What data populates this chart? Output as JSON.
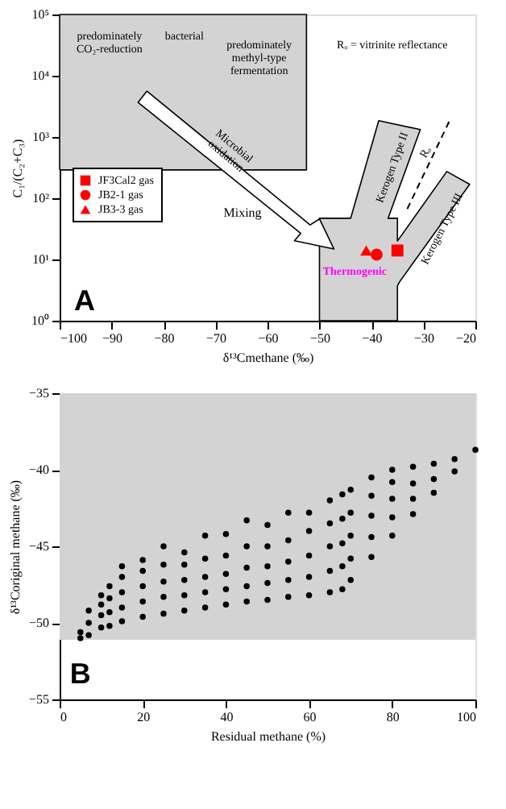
{
  "chart_data": [
    {
      "type": "scatter",
      "xlabel": "δ¹³Cmethane (‰)",
      "ylabel": "C₁/(C₂+C₃)",
      "log": "y",
      "grid": false,
      "legend": "left",
      "xlim": [
        -100,
        -20
      ],
      "xticks": [
        -100,
        -90,
        -80,
        -70,
        -60,
        -50,
        -40,
        -30,
        -20
      ],
      "ylim": [
        1,
        100000
      ],
      "yticks": [
        {
          "value": 1,
          "label": "10⁰"
        },
        {
          "value": 10,
          "label": "10¹"
        },
        {
          "value": 100,
          "label": "10²"
        },
        {
          "value": 1000,
          "label": "10³"
        },
        {
          "value": 10000,
          "label": "10⁴"
        },
        {
          "value": 100000,
          "label": "10⁵"
        }
      ],
      "series": [
        {
          "type": "area",
          "color": "#d3d3d3",
          "x": [
            -100,
            -52.5,
            -52.5,
            -100,
            -100
          ],
          "values": [
            290,
            290,
            100000,
            100000,
            290
          ]
        },
        {
          "type": "area",
          "color": "#d3d3d3",
          "x": [
            -50,
            -50,
            -44,
            -38.6,
            -30.6,
            -36.8,
            -35,
            -35,
            -25.5,
            -21.1,
            -34.6,
            -35,
            -35,
            -50
          ],
          "values": [
            1,
            47,
            47,
            1850,
            1320,
            47,
            47,
            20,
            273,
            169,
            4.3,
            3.7,
            1,
            1
          ]
        },
        {
          "type": "area",
          "color": "#ffffff",
          "x": [
            -83.2,
            -51.8,
            -50,
            -47.2,
            -54.8,
            -53.6,
            -84.9,
            -83.2
          ],
          "values": [
            5620,
            36.7,
            45.9,
            14.8,
            20.2,
            26.7,
            3670,
            5620
          ]
        },
        {
          "type": "line",
          "color": "#000000",
          "line_style": "dashed",
          "x": [
            -33.1,
            -25
          ],
          "values": [
            67,
            1820
          ]
        },
        {
          "type": "scatter",
          "name": "JF3Cal2 gas",
          "color": "#ff0000",
          "marker": "square",
          "x": [
            -35
          ],
          "values": [
            14
          ]
        },
        {
          "type": "scatter",
          "name": "JB2-1 gas",
          "color": "#ff0000",
          "marker": "circle",
          "x": [
            -39
          ],
          "values": [
            12
          ]
        },
        {
          "type": "scatter",
          "name": "JB3-3 gas",
          "color": "#ff0000",
          "marker": "triangle",
          "x": [
            -41
          ],
          "values": [
            14
          ]
        }
      ],
      "annotations": [
        "predominately\nCO₂-reduction",
        "bacterial",
        "predominately\nmethyl-type\nfermentation",
        "Rₒ = vitrinite reflectance",
        "Microbial\noxidation",
        "Kerogen Type II",
        "Kerogen Type III",
        "Rₒ",
        "Mixing",
        "Thermogenic",
        "A"
      ]
    },
    {
      "type": "scatter",
      "xlabel": "Residual methane (%)",
      "ylabel": "δ¹³Coriginal methane (‰)",
      "grid": false,
      "marker": "circle",
      "xlim": [
        0,
        100
      ],
      "xticks": [
        0,
        20,
        40,
        60,
        80,
        100
      ],
      "ylim": [
        -55,
        -35
      ],
      "yticks": [
        -55,
        -50,
        -45,
        -40,
        -35
      ],
      "bands": [
        {
          "axis": "y",
          "from": -51.1,
          "to": -35,
          "color": "#d3d3d3"
        }
      ],
      "series": [
        {
          "color": "#000000",
          "x": [
            5,
            5,
            7,
            7,
            7,
            10,
            10,
            10,
            10,
            12,
            12,
            12,
            12,
            15,
            15,
            15,
            15,
            15,
            20,
            20,
            20,
            20,
            20,
            25,
            25,
            25,
            25,
            25,
            30,
            30,
            30,
            30,
            30,
            35,
            35,
            35,
            35,
            35,
            40,
            40,
            40,
            40,
            40,
            45,
            45,
            45,
            45,
            45,
            50,
            50,
            50,
            50,
            50,
            55,
            55,
            55,
            55,
            55,
            60,
            60,
            60,
            60,
            60,
            65,
            65,
            65,
            65,
            65,
            68,
            68,
            68,
            68,
            68,
            70,
            70,
            70,
            70,
            70,
            75,
            75,
            75,
            75,
            75,
            80,
            80,
            80,
            80,
            80,
            85,
            85,
            85,
            85,
            90,
            90,
            90,
            95,
            95,
            100
          ],
          "values": [
            -51,
            -50.6,
            -50.8,
            -50,
            -49.2,
            -50.3,
            -49.5,
            -48.8,
            -48.2,
            -50.2,
            -49.3,
            -48.4,
            -47.6,
            -49.9,
            -49,
            -48,
            -47,
            -46.3,
            -49.6,
            -48.6,
            -47.6,
            -46.6,
            -45.9,
            -49.4,
            -48.3,
            -47.3,
            -46.2,
            -45,
            -49.2,
            -48.2,
            -47.2,
            -46.2,
            -45.4,
            -49,
            -48,
            -47,
            -45.8,
            -44.3,
            -48.8,
            -47.8,
            -46.8,
            -45.6,
            -44.2,
            -48.6,
            -47.6,
            -46.4,
            -45,
            -43.3,
            -48.5,
            -47.4,
            -46.3,
            -45,
            -43.6,
            -48.3,
            -47.2,
            -46,
            -44.6,
            -42.8,
            -48.2,
            -47,
            -45.6,
            -44,
            -42.8,
            -48,
            -46.6,
            -45,
            -43.5,
            -42,
            -47.8,
            -46.3,
            -44.8,
            -43.2,
            -41.6,
            -47.2,
            -45.8,
            -44.3,
            -42.8,
            -41.3,
            -45.7,
            -44.4,
            -43,
            -41.7,
            -40.5,
            -44.3,
            -43.1,
            -41.9,
            -40.8,
            -40,
            -42.9,
            -41.9,
            -40.9,
            -39.8,
            -41.5,
            -40.6,
            -39.6,
            -40.1,
            -39.3,
            -38.7
          ]
        }
      ],
      "annotations": [
        "B"
      ]
    }
  ]
}
